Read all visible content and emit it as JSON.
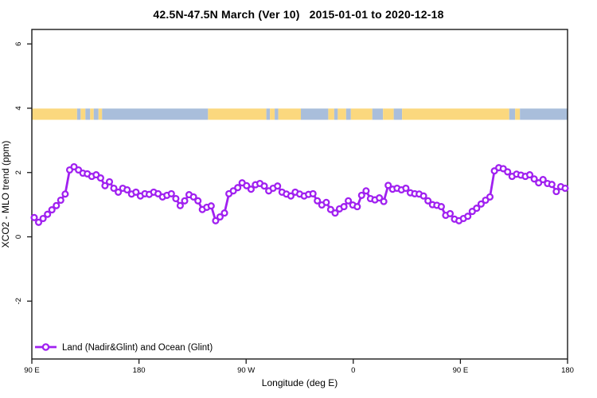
{
  "header": {
    "title_region": "42.5N-47.5N March (Ver 10)",
    "title_dates": "2015-01-01 to 2020-12-18"
  },
  "legend": {
    "label": "Land (Nadir&Glint) and Ocean (Glint)"
  },
  "chart_data": {
    "type": "line",
    "title": "42.5N-47.5N March (Ver 10)  2015-01-01 to 2020-12-18",
    "xlabel": "Longitude (deg E)",
    "ylabel": "XCO2 - MLO trend (ppm)",
    "xlim": [
      90,
      540
    ],
    "ylim": [
      -3.8,
      6.45
    ],
    "grid": false,
    "legend_position": "bottom-left-inside",
    "x_ticks": [
      {
        "label": "90 E",
        "lon": 90
      },
      {
        "label": "180",
        "lon": 180
      },
      {
        "label": "90 W",
        "lon": 270
      },
      {
        "label": "0",
        "lon": 360
      },
      {
        "label": "90 E",
        "lon": 450
      },
      {
        "label": "180",
        "lon": 540
      }
    ],
    "y_ticks": [
      {
        "label": "6",
        "value": 6
      },
      {
        "label": "4",
        "value": 4
      },
      {
        "label": "2",
        "value": 2
      },
      {
        "label": "0",
        "value": 0
      },
      {
        "label": "-2",
        "value": -2
      }
    ],
    "colors": {
      "line": "#A020F0",
      "marker_fill": "#FFFFFF",
      "land": "#FBD87E",
      "ocean": "#A9BEDB",
      "axis": "#1a1a1a"
    },
    "surface_band": {
      "description": "land/ocean strip near y=3.8",
      "value_top": 3.99,
      "value_bottom": 3.64,
      "segments": [
        {
          "from": 90,
          "to": 128,
          "surface": "land"
        },
        {
          "from": 128,
          "to": 131,
          "surface": "ocean"
        },
        {
          "from": 131,
          "to": 135,
          "surface": "land"
        },
        {
          "from": 135,
          "to": 139,
          "surface": "ocean"
        },
        {
          "from": 139,
          "to": 142,
          "surface": "land"
        },
        {
          "from": 142,
          "to": 146,
          "surface": "ocean"
        },
        {
          "from": 146,
          "to": 149,
          "surface": "land"
        },
        {
          "from": 149,
          "to": 238,
          "surface": "ocean"
        },
        {
          "from": 238,
          "to": 287,
          "surface": "land"
        },
        {
          "from": 287,
          "to": 290,
          "surface": "ocean"
        },
        {
          "from": 290,
          "to": 294,
          "surface": "land"
        },
        {
          "from": 294,
          "to": 297,
          "surface": "ocean"
        },
        {
          "from": 297,
          "to": 316,
          "surface": "land"
        },
        {
          "from": 316,
          "to": 339,
          "surface": "ocean"
        },
        {
          "from": 339,
          "to": 344,
          "surface": "land"
        },
        {
          "from": 344,
          "to": 347,
          "surface": "ocean"
        },
        {
          "from": 347,
          "to": 354,
          "surface": "land"
        },
        {
          "from": 354,
          "to": 358,
          "surface": "ocean"
        },
        {
          "from": 358,
          "to": 376,
          "surface": "land"
        },
        {
          "from": 376,
          "to": 385,
          "surface": "ocean"
        },
        {
          "from": 385,
          "to": 394,
          "surface": "land"
        },
        {
          "from": 394,
          "to": 401,
          "surface": "ocean"
        },
        {
          "from": 401,
          "to": 491,
          "surface": "land"
        },
        {
          "from": 491,
          "to": 496,
          "surface": "ocean"
        },
        {
          "from": 496,
          "to": 500,
          "surface": "land"
        },
        {
          "from": 500,
          "to": 540,
          "surface": "ocean"
        }
      ]
    },
    "series": [
      {
        "name": "Land (Nadir&Glint) and Ocean (Glint)",
        "marker": "open-circle",
        "lon_start": 92,
        "lon_end": 538,
        "values": [
          0.6,
          0.45,
          0.57,
          0.7,
          0.84,
          0.97,
          1.14,
          1.33,
          2.08,
          2.18,
          2.08,
          1.98,
          1.96,
          1.88,
          1.93,
          1.83,
          1.59,
          1.71,
          1.51,
          1.39,
          1.51,
          1.46,
          1.33,
          1.39,
          1.27,
          1.34,
          1.32,
          1.39,
          1.34,
          1.24,
          1.29,
          1.34,
          1.19,
          0.97,
          1.12,
          1.31,
          1.24,
          1.12,
          0.85,
          0.92,
          0.96,
          0.5,
          0.62,
          0.74,
          1.34,
          1.43,
          1.53,
          1.68,
          1.59,
          1.48,
          1.62,
          1.66,
          1.58,
          1.43,
          1.51,
          1.58,
          1.39,
          1.33,
          1.27,
          1.39,
          1.33,
          1.27,
          1.32,
          1.34,
          1.12,
          0.99,
          1.07,
          0.85,
          0.74,
          0.87,
          0.94,
          1.12,
          0.99,
          0.94,
          1.29,
          1.43,
          1.19,
          1.15,
          1.21,
          1.1,
          1.6,
          1.48,
          1.51,
          1.46,
          1.51,
          1.37,
          1.34,
          1.33,
          1.27,
          1.12,
          1.0,
          0.98,
          0.94,
          0.67,
          0.72,
          0.55,
          0.5,
          0.57,
          0.64,
          0.79,
          0.89,
          1.02,
          1.14,
          1.24,
          2.05,
          2.15,
          2.12,
          2.02,
          1.88,
          1.95,
          1.92,
          1.88,
          1.93,
          1.8,
          1.68,
          1.78,
          1.66,
          1.63,
          1.41,
          1.56,
          1.51
        ]
      }
    ]
  }
}
